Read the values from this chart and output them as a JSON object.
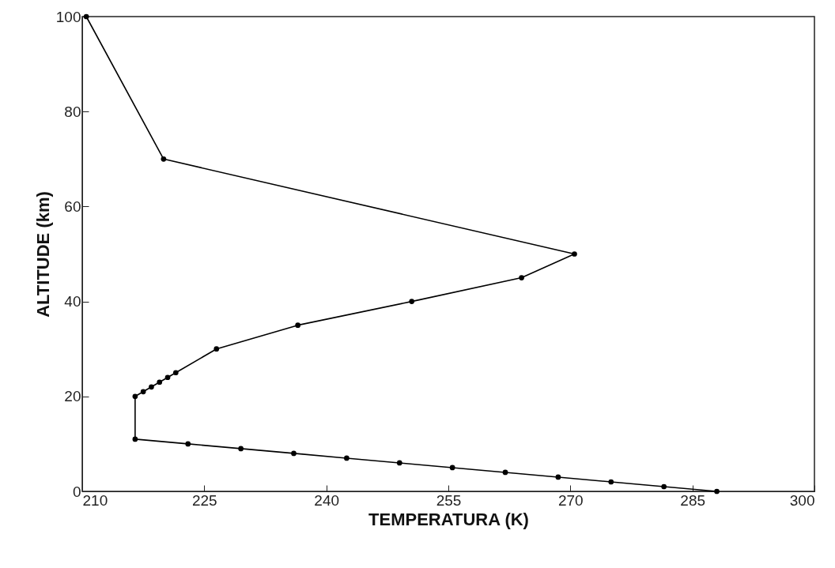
{
  "chart_data": {
    "type": "line",
    "xlabel": "TEMPERATURA (K)",
    "ylabel": "ALTITUDE (km)",
    "x": [
      288,
      281.5,
      275,
      268.5,
      262,
      255.5,
      249,
      242.5,
      236,
      229.5,
      223,
      216.5,
      216.5,
      217.5,
      218.5,
      219.5,
      220.5,
      221.5,
      226.5,
      236.5,
      250.5,
      264,
      270.5,
      220,
      210.5
    ],
    "values": [
      0,
      1,
      2,
      3,
      4,
      5,
      6,
      7,
      8,
      9,
      10,
      11,
      20,
      21,
      22,
      23,
      24,
      25,
      30,
      35,
      40,
      45,
      50,
      70,
      100
    ],
    "color": "#000000",
    "marker": "circle",
    "grid": false,
    "xlim": [
      210,
      300
    ],
    "xticks": [
      210,
      225,
      240,
      255,
      270,
      285,
      300
    ],
    "ylim": [
      0,
      100
    ],
    "yticks": [
      0,
      20,
      40,
      60,
      80,
      100
    ]
  }
}
